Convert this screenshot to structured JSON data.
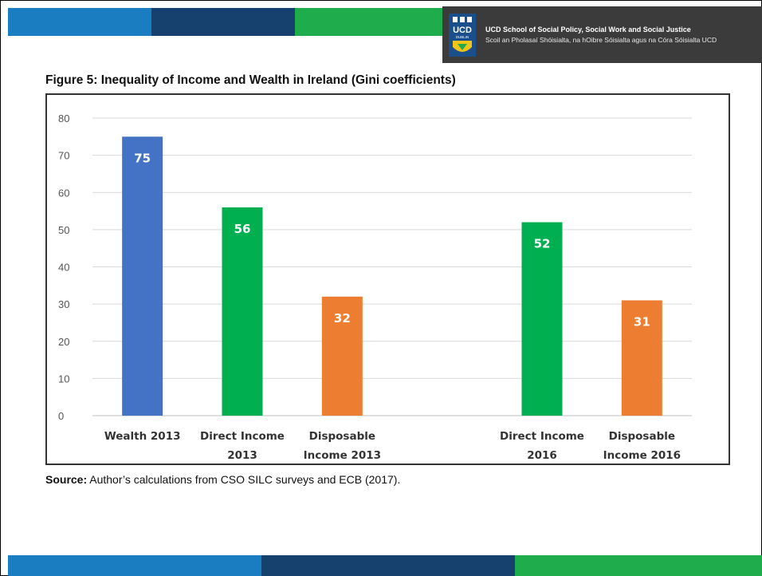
{
  "header": {
    "logo_word": "UCD",
    "logo_sub": "DUBLIN",
    "school_name_en": "UCD School of Social Policy, Social Work and Social Justice",
    "school_name_ga": "Scoil an Pholasaí Shóisialta, na hOibre Sóisialta agus na Córa Sóisialta UCD"
  },
  "colors": {
    "blue": "#4472c4",
    "green": "#00b050",
    "orange": "#ed7d31",
    "brand_light_blue": "#1a7cc1",
    "brand_dark_blue": "#16406e",
    "brand_green": "#1fac4c"
  },
  "figure": {
    "title": "Figure 5: Inequality of Income and Wealth in Ireland (Gini coefficients)",
    "source_label": "Source:",
    "source_text": " Author’s calculations from CSO SILC surveys and ECB (2017)."
  },
  "chart_data": {
    "type": "bar",
    "title": "Figure 5: Inequality of Income and Wealth in Ireland (Gini coefficients)",
    "xlabel": "",
    "ylabel": "",
    "ylim": [
      0,
      80
    ],
    "yticks": [
      0,
      10,
      20,
      30,
      40,
      50,
      60,
      70,
      80
    ],
    "grid": true,
    "categories": [
      [
        "Wealth 2013"
      ],
      [
        "Direct Income",
        "2013"
      ],
      [
        "Disposable",
        "Income 2013"
      ],
      [
        ""
      ],
      [
        "Direct Income",
        "2016"
      ],
      [
        "Disposable",
        "Income 2016"
      ]
    ],
    "values": [
      75,
      56,
      32,
      null,
      52,
      31
    ],
    "bar_colors": [
      "#4472c4",
      "#00b050",
      "#ed7d31",
      null,
      "#00b050",
      "#ed7d31"
    ]
  }
}
